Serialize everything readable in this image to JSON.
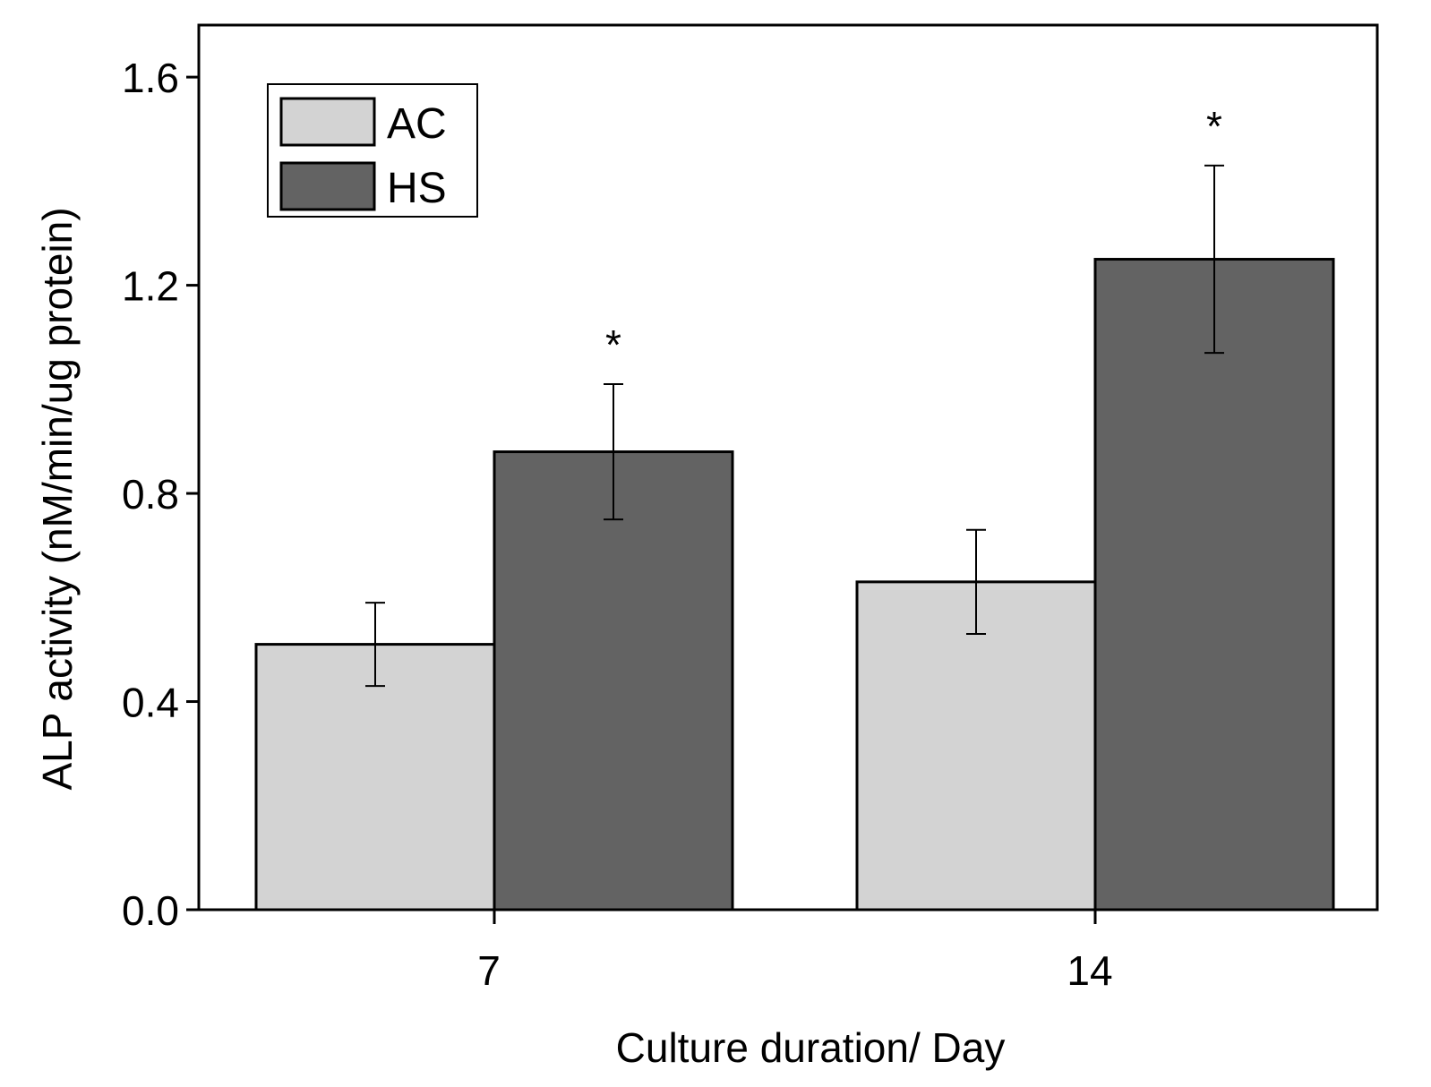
{
  "chart_data": {
    "type": "bar",
    "title": "",
    "xlabel": "Culture duration/ Day",
    "ylabel": "ALP activity (nM/min/ug protein)",
    "categories": [
      "7",
      "14"
    ],
    "ylim": [
      0,
      1.7
    ],
    "yticks": [
      0.0,
      0.4,
      0.8,
      1.2,
      1.6
    ],
    "ytick_labels": [
      "0.0",
      "0.4",
      "0.8",
      "1.2",
      "1.6"
    ],
    "series": [
      {
        "name": "AC",
        "color": "#d3d3d3",
        "values": [
          0.51,
          0.63
        ],
        "errors": [
          0.08,
          0.1
        ],
        "annotations": [
          "",
          ""
        ]
      },
      {
        "name": "HS",
        "color": "#636363",
        "values": [
          0.88,
          1.25
        ],
        "errors": [
          0.13,
          0.18
        ],
        "annotations": [
          "*",
          "*"
        ]
      }
    ],
    "legend": {
      "position": "top-left"
    },
    "grid": false
  }
}
